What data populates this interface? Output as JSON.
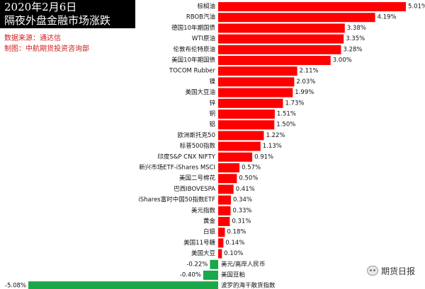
{
  "header": {
    "title_line1": "2020年2月6日",
    "title_line2": "隔夜外盘金融市场涨跌"
  },
  "source_note": "数据来源：通达信",
  "maker_note": "制图：中航期货投资咨询部",
  "watermark": {
    "text": "期货日报",
    "icon": "wechat-icon"
  },
  "colors": {
    "positive": "#ff0000",
    "negative": "#1aa84a"
  },
  "chart_data": {
    "type": "bar",
    "orientation": "horizontal",
    "value_unit": "%",
    "categories": [
      "棕榈油",
      "RBOB汽油",
      "德国10年期国债",
      "WTI原油",
      "伦敦布伦特原油",
      "美国10年期国债",
      "TOCOM Rubber",
      "镍",
      "美国大豆油",
      "锌",
      "铜",
      "铝",
      "欧洲斯托克50",
      "标普500指数",
      "印度S&P CNX NIFTY",
      "新兴市场ETF-iShares MSCI",
      "美国二号棉花",
      "巴西IBOVESPA",
      "iShares富时中国50指数ETF",
      "美元指数",
      "黄金",
      "白银",
      "美国11号糖",
      "美国大豆",
      "美元/离岸人民币",
      "美国豆粕",
      "波罗的海干散货指数"
    ],
    "values": [
      5.01,
      4.19,
      3.38,
      3.35,
      3.28,
      3.0,
      2.11,
      2.03,
      1.99,
      1.73,
      1.51,
      1.5,
      1.22,
      1.13,
      0.91,
      0.57,
      0.5,
      0.41,
      0.34,
      0.33,
      0.31,
      0.18,
      0.14,
      0.1,
      -0.22,
      -0.4,
      -5.08
    ],
    "labels": [
      "5.01%",
      "4.19%",
      "3.38%",
      "3.35%",
      "3.28%",
      "3.00%",
      "2.11%",
      "2.03%",
      "1.99%",
      "1.73%",
      "1.51%",
      "1.50%",
      "1.22%",
      "1.13%",
      "0.91%",
      "0.57%",
      "0.50%",
      "0.41%",
      "0.34%",
      "0.33%",
      "0.31%",
      "0.18%",
      "0.14%",
      "0.10%",
      "-0.22%",
      "-0.40%",
      "-5.08%"
    ],
    "xlim": [
      -5.08,
      5.01
    ],
    "grid": false,
    "legend": "none"
  }
}
